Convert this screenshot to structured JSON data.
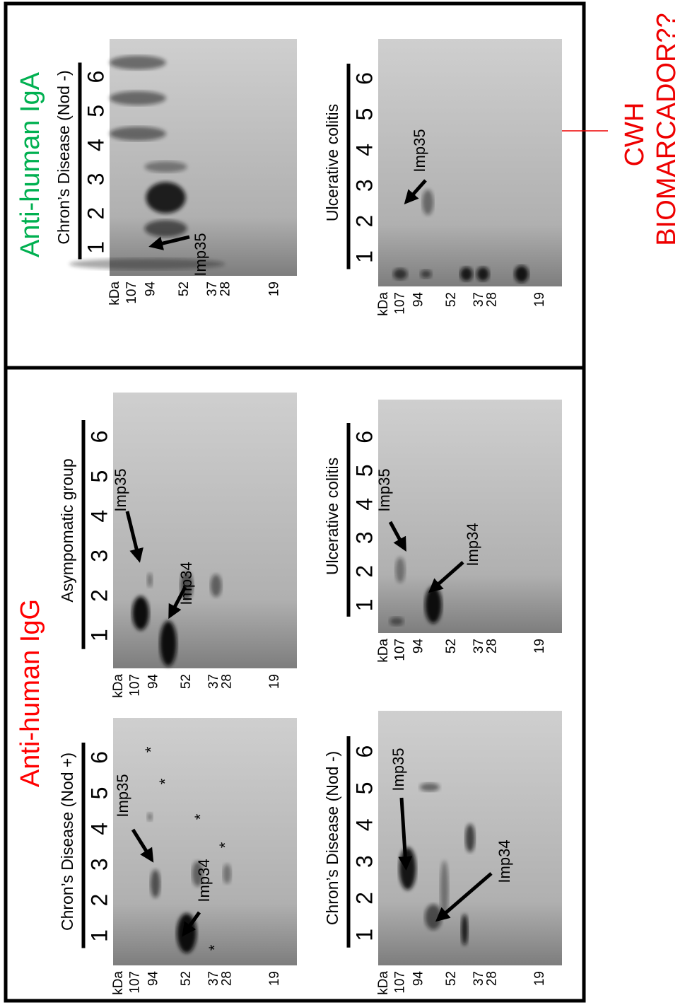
{
  "sections": [
    {
      "title": "Anti-human IgA",
      "panels": [
        {
          "title": "Chron’s Disease (Nod -)",
          "lanes": [
            "1",
            "2",
            "3",
            "4",
            "5",
            "6"
          ],
          "markers": [
            "kDa",
            "107",
            "94",
            "52",
            "37",
            "28",
            "19"
          ],
          "annotations": [
            "Imp35"
          ]
        },
        {
          "title": "Ulcerative colitis",
          "lanes": [
            "1",
            "2",
            "3",
            "4",
            "5",
            "6"
          ],
          "markers": [
            "kDa",
            "107",
            "94",
            "52",
            "37",
            "28",
            "19"
          ],
          "annotations": [
            "Imp35"
          ]
        }
      ]
    },
    {
      "title": "Anti-human IgG",
      "panels": [
        {
          "title": "Chron’s Disease (Nod +)",
          "lanes": [
            "1",
            "2",
            "3",
            "4",
            "5",
            "6"
          ],
          "markers": [
            "kDa",
            "107",
            "94",
            "52",
            "37",
            "28",
            "19"
          ],
          "annotations": [
            "Imp35",
            "Imp34",
            "*",
            "*",
            "*",
            "*",
            "*"
          ]
        },
        {
          "title": "Asympomatic group",
          "lanes": [
            "1",
            "2",
            "3",
            "4",
            "5",
            "6"
          ],
          "markers": [
            "kDa",
            "107",
            "94",
            "52",
            "37",
            "28",
            "19"
          ],
          "annotations": [
            "Imp35",
            "Imp34"
          ]
        },
        {
          "title": "Chron’s Disease (Nod -)",
          "lanes": [
            "1",
            "2",
            "3",
            "4",
            "5",
            "6"
          ],
          "markers": [
            "kDa",
            "107",
            "94",
            "52",
            "37",
            "28",
            "19"
          ],
          "annotations": [
            "Imp35",
            "Imp34"
          ]
        },
        {
          "title": "Ulcerative colitis",
          "lanes": [
            "1",
            "2",
            "3",
            "4",
            "5",
            "6"
          ],
          "markers": [
            "kDa",
            "107",
            "94",
            "52",
            "37",
            "28",
            "19"
          ],
          "annotations": [
            "Imp35",
            "Imp34"
          ]
        }
      ]
    }
  ],
  "callout": {
    "title": "CWH",
    "subtitle": "BIOMARCADOR??"
  }
}
